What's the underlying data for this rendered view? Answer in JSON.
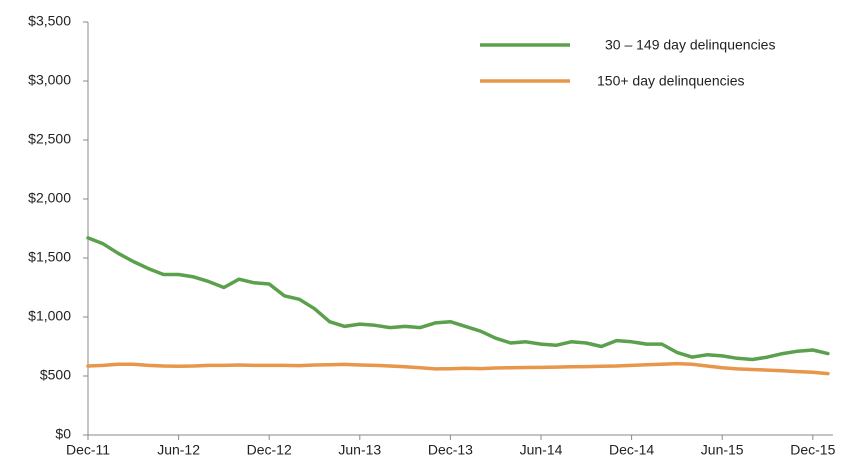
{
  "chart_data": {
    "type": "line",
    "categories": [
      "Dec-11",
      null,
      null,
      null,
      null,
      null,
      "Jun-12",
      null,
      null,
      null,
      null,
      null,
      "Dec-12",
      null,
      null,
      null,
      null,
      null,
      "Jun-13",
      null,
      null,
      null,
      null,
      null,
      "Dec-13",
      null,
      null,
      null,
      null,
      null,
      "Jun-14",
      null,
      null,
      null,
      null,
      null,
      "Dec-14",
      null,
      null,
      null,
      null,
      null,
      "Jun-15",
      null,
      null,
      null,
      null,
      null,
      "Dec-15",
      null
    ],
    "series": [
      {
        "name": "30 – 149 day delinquencies",
        "color": "#5ba14d",
        "values": [
          1670,
          1620,
          1540,
          1470,
          1410,
          1360,
          1360,
          1340,
          1300,
          1250,
          1320,
          1290,
          1280,
          1180,
          1150,
          1070,
          960,
          920,
          940,
          930,
          910,
          920,
          910,
          950,
          960,
          920,
          880,
          820,
          780,
          790,
          770,
          760,
          790,
          780,
          750,
          800,
          790,
          770,
          770,
          700,
          660,
          680,
          670,
          650,
          640,
          660,
          690,
          710,
          720,
          690
        ]
      },
      {
        "name": "150+ day delinquencies",
        "color": "#e8964a",
        "values": [
          585,
          590,
          600,
          600,
          590,
          585,
          583,
          585,
          590,
          590,
          593,
          590,
          590,
          590,
          588,
          593,
          595,
          598,
          593,
          590,
          585,
          578,
          570,
          560,
          562,
          565,
          563,
          568,
          570,
          572,
          573,
          575,
          578,
          580,
          583,
          585,
          590,
          595,
          600,
          605,
          600,
          585,
          570,
          560,
          555,
          550,
          545,
          537,
          532,
          520
        ]
      }
    ],
    "ylim": [
      0,
      3500
    ],
    "yticks": [
      {
        "value": 0,
        "label": "$0"
      },
      {
        "value": 500,
        "label": "$500"
      },
      {
        "value": 1000,
        "label": "$1,000"
      },
      {
        "value": 1500,
        "label": "$1,500"
      },
      {
        "value": 2000,
        "label": "$2,000"
      },
      {
        "value": 2500,
        "label": "$2,500"
      },
      {
        "value": 3000,
        "label": "$3,000"
      },
      {
        "value": 3500,
        "label": "$3,500"
      }
    ],
    "legend": "top-right"
  }
}
